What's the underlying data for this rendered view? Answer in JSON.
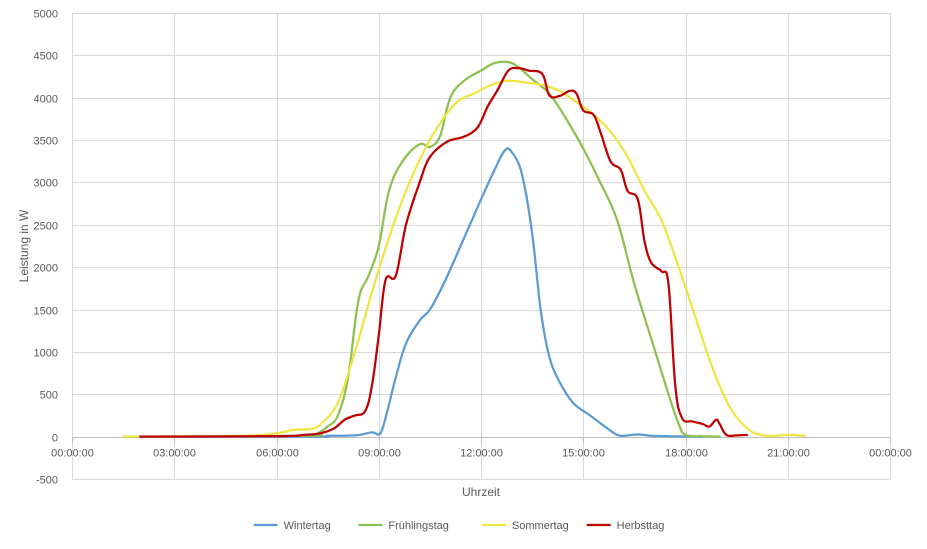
{
  "chart_data": {
    "type": "line",
    "title": "",
    "xlabel": "Uhrzeit",
    "ylabel": "Leistung in W",
    "x_unit": "hours",
    "xlim": [
      0,
      24
    ],
    "ylim": [
      -500,
      5000
    ],
    "x_ticks": [
      {
        "value": 0,
        "label": "00:00:00"
      },
      {
        "value": 3,
        "label": "03:00:00"
      },
      {
        "value": 6,
        "label": "06:00:00"
      },
      {
        "value": 9,
        "label": "09:00:00"
      },
      {
        "value": 12,
        "label": "12:00:00"
      },
      {
        "value": 15,
        "label": "15:00:00"
      },
      {
        "value": 18,
        "label": "18:00:00"
      },
      {
        "value": 21,
        "label": "21:00:00"
      },
      {
        "value": 24,
        "label": "00:00:00"
      }
    ],
    "y_ticks": [
      {
        "value": -500,
        "label": "-500"
      },
      {
        "value": 0,
        "label": "0"
      },
      {
        "value": 500,
        "label": "500"
      },
      {
        "value": 1000,
        "label": "1000"
      },
      {
        "value": 1500,
        "label": "1500"
      },
      {
        "value": 2000,
        "label": "2000"
      },
      {
        "value": 2500,
        "label": "2500"
      },
      {
        "value": 3000,
        "label": "3000"
      },
      {
        "value": 3500,
        "label": "3500"
      },
      {
        "value": 4000,
        "label": "4000"
      },
      {
        "value": 4500,
        "label": "4500"
      },
      {
        "value": 5000,
        "label": "5000"
      }
    ],
    "grid": true,
    "legend_position": "bottom",
    "series": [
      {
        "name": "Wintertag",
        "color": "#5B9BD5",
        "points": [
          [
            2.0,
            0
          ],
          [
            7.0,
            0
          ],
          [
            7.5,
            10
          ],
          [
            8.3,
            15
          ],
          [
            8.8,
            50
          ],
          [
            9.05,
            40
          ],
          [
            9.25,
            300
          ],
          [
            9.5,
            700
          ],
          [
            9.8,
            1100
          ],
          [
            10.2,
            1370
          ],
          [
            10.5,
            1500
          ],
          [
            10.9,
            1800
          ],
          [
            11.4,
            2250
          ],
          [
            12.0,
            2800
          ],
          [
            12.4,
            3150
          ],
          [
            12.7,
            3380
          ],
          [
            12.9,
            3360
          ],
          [
            13.2,
            3100
          ],
          [
            13.5,
            2400
          ],
          [
            13.75,
            1500
          ],
          [
            14.0,
            950
          ],
          [
            14.3,
            650
          ],
          [
            14.7,
            400
          ],
          [
            15.2,
            250
          ],
          [
            15.7,
            100
          ],
          [
            16.0,
            20
          ],
          [
            16.2,
            10
          ],
          [
            16.6,
            25
          ],
          [
            17.0,
            10
          ],
          [
            17.5,
            5
          ],
          [
            18.5,
            0
          ]
        ]
      },
      {
        "name": "Frühlingstag",
        "color": "#8CC151",
        "points": [
          [
            1.7,
            0
          ],
          [
            6.8,
            10
          ],
          [
            7.2,
            40
          ],
          [
            7.5,
            120
          ],
          [
            7.8,
            250
          ],
          [
            8.1,
            700
          ],
          [
            8.4,
            1600
          ],
          [
            8.7,
            1900
          ],
          [
            9.0,
            2250
          ],
          [
            9.3,
            2900
          ],
          [
            9.7,
            3250
          ],
          [
            10.2,
            3450
          ],
          [
            10.5,
            3420
          ],
          [
            10.8,
            3550
          ],
          [
            11.1,
            4000
          ],
          [
            11.5,
            4200
          ],
          [
            12.0,
            4320
          ],
          [
            12.4,
            4410
          ],
          [
            12.8,
            4420
          ],
          [
            13.1,
            4360
          ],
          [
            13.5,
            4220
          ],
          [
            14.0,
            4050
          ],
          [
            14.5,
            3750
          ],
          [
            15.0,
            3400
          ],
          [
            15.5,
            3000
          ],
          [
            16.0,
            2550
          ],
          [
            16.5,
            1800
          ],
          [
            17.0,
            1150
          ],
          [
            17.5,
            500
          ],
          [
            17.8,
            150
          ],
          [
            18.0,
            20
          ],
          [
            18.5,
            5
          ],
          [
            19.0,
            0
          ]
        ]
      },
      {
        "name": "Sommertag",
        "color": "#F0E442",
        "points": [
          [
            1.5,
            0
          ],
          [
            5.0,
            10
          ],
          [
            6.0,
            40
          ],
          [
            6.5,
            80
          ],
          [
            7.0,
            90
          ],
          [
            7.3,
            150
          ],
          [
            7.8,
            400
          ],
          [
            8.3,
            1000
          ],
          [
            8.8,
            1700
          ],
          [
            9.3,
            2350
          ],
          [
            9.8,
            2900
          ],
          [
            10.3,
            3350
          ],
          [
            10.8,
            3700
          ],
          [
            11.3,
            3950
          ],
          [
            11.8,
            4050
          ],
          [
            12.3,
            4150
          ],
          [
            12.8,
            4200
          ],
          [
            13.3,
            4180
          ],
          [
            13.8,
            4150
          ],
          [
            14.3,
            4080
          ],
          [
            14.8,
            3950
          ],
          [
            15.3,
            3800
          ],
          [
            15.8,
            3600
          ],
          [
            16.3,
            3300
          ],
          [
            16.8,
            2900
          ],
          [
            17.3,
            2550
          ],
          [
            17.8,
            2000
          ],
          [
            18.3,
            1400
          ],
          [
            18.8,
            800
          ],
          [
            19.3,
            350
          ],
          [
            19.8,
            100
          ],
          [
            20.2,
            20
          ],
          [
            20.6,
            10
          ],
          [
            21.0,
            20
          ],
          [
            21.5,
            10
          ]
        ]
      },
      {
        "name": "Herbsttag",
        "color": "#C00000",
        "points": [
          [
            2.0,
            0
          ],
          [
            6.0,
            5
          ],
          [
            6.8,
            20
          ],
          [
            7.3,
            40
          ],
          [
            7.7,
            100
          ],
          [
            8.0,
            200
          ],
          [
            8.3,
            250
          ],
          [
            8.6,
            300
          ],
          [
            8.8,
            600
          ],
          [
            9.0,
            1200
          ],
          [
            9.2,
            1850
          ],
          [
            9.5,
            1900
          ],
          [
            9.8,
            2500
          ],
          [
            10.2,
            3000
          ],
          [
            10.5,
            3300
          ],
          [
            11.0,
            3480
          ],
          [
            11.5,
            3540
          ],
          [
            11.9,
            3650
          ],
          [
            12.2,
            3900
          ],
          [
            12.5,
            4100
          ],
          [
            12.8,
            4320
          ],
          [
            13.1,
            4350
          ],
          [
            13.4,
            4320
          ],
          [
            13.8,
            4280
          ],
          [
            14.0,
            4030
          ],
          [
            14.3,
            4020
          ],
          [
            14.6,
            4080
          ],
          [
            14.8,
            4050
          ],
          [
            15.0,
            3850
          ],
          [
            15.3,
            3800
          ],
          [
            15.5,
            3600
          ],
          [
            15.8,
            3250
          ],
          [
            16.1,
            3150
          ],
          [
            16.3,
            2900
          ],
          [
            16.6,
            2800
          ],
          [
            16.8,
            2300
          ],
          [
            17.0,
            2050
          ],
          [
            17.3,
            1950
          ],
          [
            17.5,
            1800
          ],
          [
            17.7,
            600
          ],
          [
            17.9,
            220
          ],
          [
            18.2,
            180
          ],
          [
            18.5,
            150
          ],
          [
            18.7,
            120
          ],
          [
            18.9,
            200
          ],
          [
            19.0,
            150
          ],
          [
            19.2,
            20
          ],
          [
            19.5,
            15
          ],
          [
            19.8,
            20
          ]
        ]
      }
    ]
  }
}
